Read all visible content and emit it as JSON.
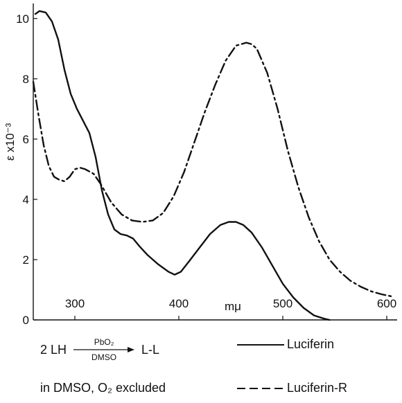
{
  "chart_data": {
    "type": "line",
    "title": "",
    "xlabel": "mμ",
    "ylabel": "ε x10⁻³",
    "xlim": [
      260,
      610
    ],
    "ylim": [
      0,
      10.5
    ],
    "xticks": [
      300,
      400,
      500,
      600
    ],
    "yticks": [
      0,
      2,
      4,
      6,
      8,
      10
    ],
    "grid": false,
    "legend_position": "bottom-right",
    "series": [
      {
        "name": "Luciferin",
        "style": "solid",
        "color": "#111111",
        "x": [
          262,
          266,
          272,
          278,
          284,
          290,
          296,
          302,
          308,
          314,
          320,
          326,
          332,
          338,
          344,
          350,
          356,
          362,
          370,
          380,
          390,
          396,
          402,
          410,
          420,
          430,
          440,
          448,
          455,
          462,
          470,
          480,
          490,
          500,
          510,
          520,
          530,
          540,
          545
        ],
        "y": [
          10.15,
          10.25,
          10.2,
          9.9,
          9.3,
          8.3,
          7.5,
          7.0,
          6.6,
          6.2,
          5.4,
          4.3,
          3.5,
          3.0,
          2.85,
          2.8,
          2.7,
          2.45,
          2.15,
          1.85,
          1.6,
          1.5,
          1.6,
          1.95,
          2.4,
          2.85,
          3.15,
          3.25,
          3.25,
          3.15,
          2.9,
          2.4,
          1.8,
          1.2,
          0.75,
          0.4,
          0.15,
          0.04,
          0.0
        ]
      },
      {
        "name": "Luciferin-R",
        "style": "dash-dot",
        "color": "#111111",
        "x": [
          260,
          265,
          270,
          275,
          280,
          285,
          290,
          295,
          300,
          305,
          310,
          318,
          325,
          335,
          345,
          355,
          365,
          375,
          385,
          395,
          405,
          415,
          425,
          435,
          445,
          455,
          465,
          470,
          475,
          485,
          495,
          505,
          515,
          525,
          535,
          545,
          555,
          565,
          575,
          585,
          595,
          605
        ],
        "y": [
          7.9,
          6.8,
          5.8,
          5.1,
          4.75,
          4.65,
          4.6,
          4.75,
          5.0,
          5.05,
          5.0,
          4.85,
          4.5,
          3.9,
          3.5,
          3.3,
          3.25,
          3.3,
          3.55,
          4.1,
          4.9,
          5.9,
          6.9,
          7.8,
          8.6,
          9.1,
          9.2,
          9.15,
          9.0,
          8.2,
          7.0,
          5.6,
          4.4,
          3.4,
          2.6,
          2.0,
          1.6,
          1.3,
          1.1,
          0.95,
          0.85,
          0.78
        ]
      }
    ]
  },
  "captions": {
    "reaction_left": "2 LH",
    "reaction_reagent": "PbO₂",
    "reaction_solvent": "DMSO",
    "reaction_product": "L-L",
    "conditions": "in DMSO, O₂ excluded"
  }
}
